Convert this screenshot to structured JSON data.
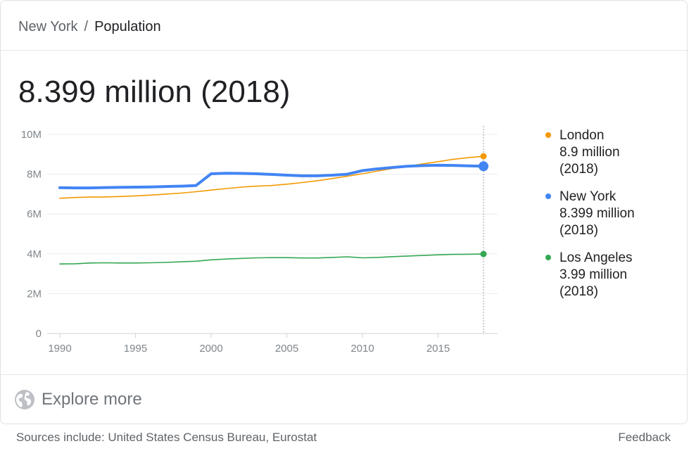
{
  "breadcrumb": {
    "parent": "New York",
    "separator": "/",
    "current": "Population"
  },
  "headline": "8.399 million (2018)",
  "legend": [
    {
      "name": "London",
      "value": "8.9 million",
      "year": "(2018)",
      "color": "#f29900"
    },
    {
      "name": "New York",
      "value": "8.399 million",
      "year": "(2018)",
      "color": "#4285f4"
    },
    {
      "name": "Los Angeles",
      "value": "3.99 million",
      "year": "(2018)",
      "color": "#34a853"
    }
  ],
  "explore": {
    "label": "Explore more",
    "icon": "globe-icon"
  },
  "footer": {
    "sources": "Sources include: United States Census Bureau, Eurostat",
    "feedback": "Feedback"
  },
  "chart_data": {
    "type": "line",
    "title": "",
    "xlabel": "",
    "ylabel": "",
    "xlim": [
      1990,
      2018
    ],
    "ylim": [
      0,
      10
    ],
    "y_ticks": [
      {
        "v": 0,
        "label": "0"
      },
      {
        "v": 2,
        "label": "2M"
      },
      {
        "v": 4,
        "label": "4M"
      },
      {
        "v": 6,
        "label": "6M"
      },
      {
        "v": 8,
        "label": "8M"
      },
      {
        "v": 10,
        "label": "10M"
      }
    ],
    "x_ticks": [
      1990,
      1995,
      2000,
      2005,
      2010,
      2015
    ],
    "grid": true,
    "legend_position": "right",
    "highlight_x": 2018,
    "x": [
      1990,
      1991,
      1992,
      1993,
      1994,
      1995,
      1996,
      1997,
      1998,
      1999,
      2000,
      2001,
      2002,
      2003,
      2004,
      2005,
      2006,
      2007,
      2008,
      2009,
      2010,
      2011,
      2012,
      2013,
      2014,
      2015,
      2016,
      2017,
      2018
    ],
    "series": [
      {
        "name": "London",
        "color": "#f29900",
        "width": 1.6,
        "values": [
          6.79,
          6.83,
          6.85,
          6.86,
          6.88,
          6.91,
          6.95,
          7.0,
          7.05,
          7.12,
          7.2,
          7.28,
          7.35,
          7.4,
          7.43,
          7.5,
          7.58,
          7.67,
          7.78,
          7.9,
          8.02,
          8.16,
          8.29,
          8.4,
          8.52,
          8.63,
          8.75,
          8.83,
          8.9
        ]
      },
      {
        "name": "New York",
        "color": "#4285f4",
        "width": 4,
        "values": [
          7.32,
          7.31,
          7.31,
          7.33,
          7.34,
          7.35,
          7.36,
          7.38,
          7.4,
          7.43,
          8.02,
          8.05,
          8.04,
          8.02,
          7.99,
          7.95,
          7.92,
          7.92,
          7.95,
          8.0,
          8.18,
          8.27,
          8.34,
          8.4,
          8.43,
          8.45,
          8.44,
          8.42,
          8.399
        ]
      },
      {
        "name": "Los Angeles",
        "color": "#34a853",
        "width": 1.6,
        "values": [
          3.49,
          3.5,
          3.54,
          3.55,
          3.54,
          3.54,
          3.55,
          3.57,
          3.6,
          3.63,
          3.7,
          3.74,
          3.77,
          3.8,
          3.81,
          3.81,
          3.79,
          3.79,
          3.82,
          3.85,
          3.8,
          3.82,
          3.86,
          3.89,
          3.92,
          3.95,
          3.97,
          3.98,
          3.99
        ]
      }
    ]
  }
}
